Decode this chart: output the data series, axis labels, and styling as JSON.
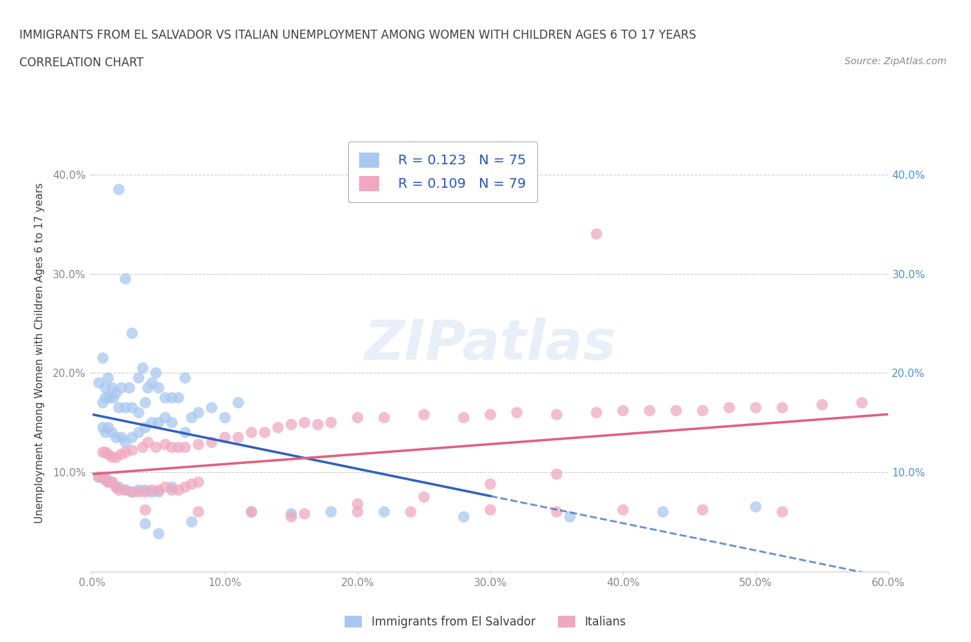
{
  "title": "IMMIGRANTS FROM EL SALVADOR VS ITALIAN UNEMPLOYMENT AMONG WOMEN WITH CHILDREN AGES 6 TO 17 YEARS",
  "subtitle": "CORRELATION CHART",
  "source": "Source: ZipAtlas.com",
  "xlabel": "",
  "ylabel": "Unemployment Among Women with Children Ages 6 to 17 years",
  "xlim": [
    0.0,
    0.6
  ],
  "ylim": [
    0.0,
    0.44
  ],
  "xticks": [
    0.0,
    0.1,
    0.2,
    0.3,
    0.4,
    0.5,
    0.6
  ],
  "yticks": [
    0.0,
    0.1,
    0.2,
    0.3,
    0.4
  ],
  "xtick_labels": [
    "0.0%",
    "10.0%",
    "20.0%",
    "30.0%",
    "40.0%",
    "50.0%",
    "60.0%"
  ],
  "ytick_labels": [
    "",
    "10.0%",
    "20.0%",
    "30.0%",
    "40.0%"
  ],
  "blue_color": "#a8c8f0",
  "pink_color": "#f0a8c0",
  "blue_line_color": "#3060c0",
  "pink_line_color": "#e06080",
  "R_blue": 0.123,
  "N_blue": 75,
  "R_pink": 0.109,
  "N_pink": 79,
  "watermark": "ZIPatlas",
  "legend_label_blue": "Immigrants from El Salvador",
  "legend_label_pink": "Italians",
  "blue_scatter_x": [
    0.02,
    0.025,
    0.03,
    0.008,
    0.012,
    0.005,
    0.01,
    0.015,
    0.018,
    0.022,
    0.028,
    0.035,
    0.038,
    0.042,
    0.045,
    0.008,
    0.01,
    0.013,
    0.016,
    0.02,
    0.025,
    0.03,
    0.035,
    0.04,
    0.048,
    0.05,
    0.055,
    0.06,
    0.065,
    0.07,
    0.008,
    0.01,
    0.012,
    0.015,
    0.018,
    0.022,
    0.025,
    0.03,
    0.035,
    0.04,
    0.045,
    0.05,
    0.055,
    0.06,
    0.07,
    0.075,
    0.08,
    0.09,
    0.1,
    0.11,
    0.005,
    0.008,
    0.01,
    0.012,
    0.015,
    0.018,
    0.02,
    0.025,
    0.03,
    0.035,
    0.04,
    0.045,
    0.05,
    0.06,
    0.12,
    0.15,
    0.18,
    0.22,
    0.28,
    0.36,
    0.43,
    0.5,
    0.04,
    0.075,
    0.05
  ],
  "blue_scatter_y": [
    0.385,
    0.295,
    0.24,
    0.215,
    0.195,
    0.19,
    0.185,
    0.185,
    0.18,
    0.185,
    0.185,
    0.195,
    0.205,
    0.185,
    0.19,
    0.17,
    0.175,
    0.175,
    0.175,
    0.165,
    0.165,
    0.165,
    0.16,
    0.17,
    0.2,
    0.185,
    0.175,
    0.175,
    0.175,
    0.195,
    0.145,
    0.14,
    0.145,
    0.14,
    0.135,
    0.135,
    0.13,
    0.135,
    0.14,
    0.145,
    0.15,
    0.15,
    0.155,
    0.15,
    0.14,
    0.155,
    0.16,
    0.165,
    0.155,
    0.17,
    0.095,
    0.095,
    0.095,
    0.09,
    0.09,
    0.085,
    0.085,
    0.082,
    0.08,
    0.082,
    0.082,
    0.08,
    0.08,
    0.085,
    0.06,
    0.058,
    0.06,
    0.06,
    0.055,
    0.055,
    0.06,
    0.065,
    0.048,
    0.05,
    0.038
  ],
  "pink_scatter_x": [
    0.005,
    0.008,
    0.01,
    0.012,
    0.015,
    0.018,
    0.02,
    0.025,
    0.03,
    0.035,
    0.04,
    0.045,
    0.05,
    0.055,
    0.06,
    0.065,
    0.07,
    0.075,
    0.08,
    0.008,
    0.01,
    0.012,
    0.015,
    0.018,
    0.022,
    0.025,
    0.03,
    0.038,
    0.042,
    0.048,
    0.055,
    0.06,
    0.065,
    0.07,
    0.08,
    0.09,
    0.1,
    0.11,
    0.12,
    0.13,
    0.14,
    0.15,
    0.16,
    0.17,
    0.18,
    0.2,
    0.22,
    0.25,
    0.28,
    0.3,
    0.32,
    0.35,
    0.38,
    0.4,
    0.42,
    0.44,
    0.46,
    0.48,
    0.5,
    0.52,
    0.55,
    0.04,
    0.08,
    0.12,
    0.16,
    0.2,
    0.24,
    0.3,
    0.35,
    0.4,
    0.46,
    0.52,
    0.38,
    0.35,
    0.3,
    0.25,
    0.2,
    0.15,
    0.58
  ],
  "pink_scatter_y": [
    0.095,
    0.095,
    0.092,
    0.09,
    0.09,
    0.085,
    0.082,
    0.082,
    0.08,
    0.08,
    0.08,
    0.082,
    0.082,
    0.085,
    0.082,
    0.082,
    0.085,
    0.088,
    0.09,
    0.12,
    0.12,
    0.118,
    0.115,
    0.115,
    0.118,
    0.12,
    0.122,
    0.125,
    0.13,
    0.125,
    0.128,
    0.125,
    0.125,
    0.125,
    0.128,
    0.13,
    0.135,
    0.135,
    0.14,
    0.14,
    0.145,
    0.148,
    0.15,
    0.148,
    0.15,
    0.155,
    0.155,
    0.158,
    0.155,
    0.158,
    0.16,
    0.158,
    0.16,
    0.162,
    0.162,
    0.162,
    0.162,
    0.165,
    0.165,
    0.165,
    0.168,
    0.062,
    0.06,
    0.06,
    0.058,
    0.06,
    0.06,
    0.062,
    0.06,
    0.062,
    0.062,
    0.06,
    0.34,
    0.098,
    0.088,
    0.075,
    0.068,
    0.055,
    0.17
  ],
  "bg_color": "#ffffff",
  "grid_color": "#cccccc",
  "title_color": "#404040",
  "axis_color": "#888888"
}
